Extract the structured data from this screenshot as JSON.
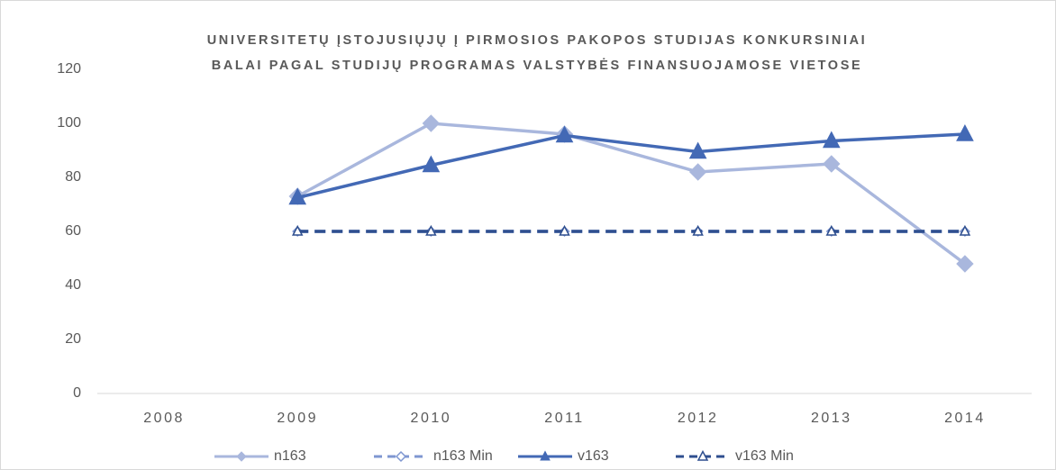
{
  "chart_data": {
    "type": "line",
    "title": [
      "UNIVERSITETŲ ĮSTOJUSIŲJŲ Į PIRMOSIOS PAKOPOS STUDIJAS KONKURSINIAI",
      "BALAI PAGAL STUDIJŲ PROGRAMAS VALSTYBĖS FINANSUOJAMOSE VIETOSE"
    ],
    "categories": [
      "2008",
      "2009",
      "2010",
      "2011",
      "2012",
      "2013",
      "2014"
    ],
    "series": [
      {
        "name": "n163",
        "color": "#a9b7dd",
        "marker": "diamond",
        "filled": true,
        "dashed": false,
        "values": [
          null,
          73,
          100,
          96,
          82,
          85,
          48
        ]
      },
      {
        "name": "n163 Min",
        "color": "#7f97d1",
        "marker": "diamond",
        "filled": false,
        "dashed": true,
        "values": [
          null,
          60,
          60,
          60,
          60,
          60,
          60
        ]
      },
      {
        "name": "v163",
        "color": "#4369b5",
        "marker": "triangle",
        "filled": true,
        "dashed": false,
        "values": [
          null,
          72.5,
          84.5,
          95.5,
          89.5,
          93.5,
          96
        ]
      },
      {
        "name": "v163 Min",
        "color": "#2f4f8f",
        "marker": "triangle",
        "filled": false,
        "dashed": true,
        "values": [
          null,
          60,
          60,
          60,
          60,
          60,
          60
        ]
      }
    ],
    "ylim": [
      0,
      120
    ],
    "yticks": [
      0,
      20,
      40,
      60,
      80,
      100,
      120
    ],
    "grid": false,
    "legend": "bottom"
  }
}
